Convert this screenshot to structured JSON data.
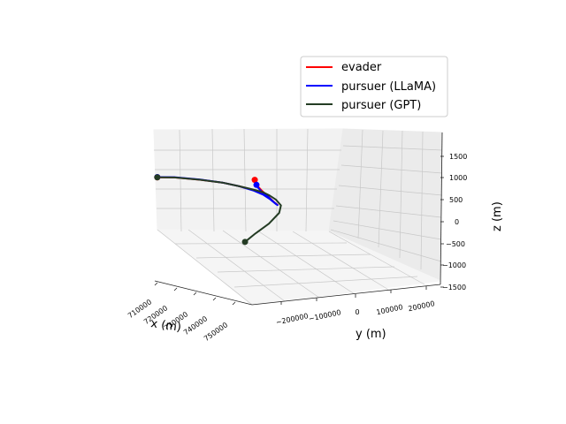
{
  "chart_data": {
    "type": "line",
    "projection": "3d",
    "grid": true,
    "legend_placement": "top-right",
    "xlabel": "x (m)",
    "ylabel": "y (m)",
    "zlabel": "z (m)",
    "x_ticks": [
      "710000",
      "720000",
      "730000",
      "740000",
      "750000"
    ],
    "y_ticks": [
      "−200000",
      "−100000",
      "0",
      "100000",
      "200000"
    ],
    "z_ticks": [
      "1500",
      "1000",
      "500",
      "0",
      "−500",
      "−1000",
      "−1500"
    ],
    "series": [
      {
        "name": "evader",
        "color": "#ff0000",
        "points": [
          [
            0.0,
            0.05,
            0.55
          ],
          [
            0.1,
            0.04,
            0.545
          ],
          [
            0.25,
            0.06,
            0.535
          ],
          [
            0.38,
            0.09,
            0.525
          ],
          [
            0.48,
            0.14,
            0.515
          ],
          [
            0.56,
            0.2,
            0.51
          ],
          [
            0.62,
            0.3,
            0.52
          ],
          [
            0.66,
            0.42,
            0.54
          ],
          [
            0.7,
            0.56,
            0.56
          ],
          [
            0.71,
            0.64,
            0.59
          ],
          [
            0.69,
            0.72,
            0.66
          ],
          [
            0.66,
            0.78,
            0.74
          ],
          [
            0.62,
            0.81,
            0.82
          ],
          [
            0.59,
            0.82,
            0.88
          ],
          [
            0.58,
            0.82,
            0.93
          ]
        ]
      },
      {
        "name": "pursuer (LLaMA)",
        "color": "#0000ff",
        "points": [
          [
            0.0,
            0.045,
            0.55
          ],
          [
            0.1,
            0.035,
            0.545
          ],
          [
            0.25,
            0.055,
            0.535
          ],
          [
            0.38,
            0.085,
            0.522
          ],
          [
            0.48,
            0.135,
            0.512
          ],
          [
            0.56,
            0.2,
            0.506
          ],
          [
            0.62,
            0.3,
            0.516
          ],
          [
            0.66,
            0.42,
            0.536
          ],
          [
            0.7,
            0.56,
            0.556
          ],
          [
            0.71,
            0.645,
            0.59
          ],
          [
            0.69,
            0.725,
            0.66
          ],
          [
            0.66,
            0.785,
            0.74
          ],
          [
            0.62,
            0.815,
            0.81
          ],
          [
            0.595,
            0.82,
            0.86
          ],
          [
            0.59,
            0.82,
            0.88
          ]
        ]
      },
      {
        "name": "pursuer (GPT)",
        "color": "#243c24",
        "points": [
          [
            0.0,
            0.05,
            0.55
          ],
          [
            0.1,
            0.04,
            0.545
          ],
          [
            0.25,
            0.06,
            0.535
          ],
          [
            0.38,
            0.09,
            0.525
          ],
          [
            0.48,
            0.14,
            0.515
          ],
          [
            0.56,
            0.2,
            0.515
          ],
          [
            0.62,
            0.3,
            0.54
          ],
          [
            0.66,
            0.42,
            0.57
          ],
          [
            0.7,
            0.56,
            0.6
          ],
          [
            0.73,
            0.64,
            0.585
          ],
          [
            0.72,
            0.66,
            0.52
          ],
          [
            0.66,
            0.64,
            0.4
          ],
          [
            0.58,
            0.62,
            0.29
          ],
          [
            0.52,
            0.61,
            0.2
          ]
        ]
      }
    ]
  }
}
